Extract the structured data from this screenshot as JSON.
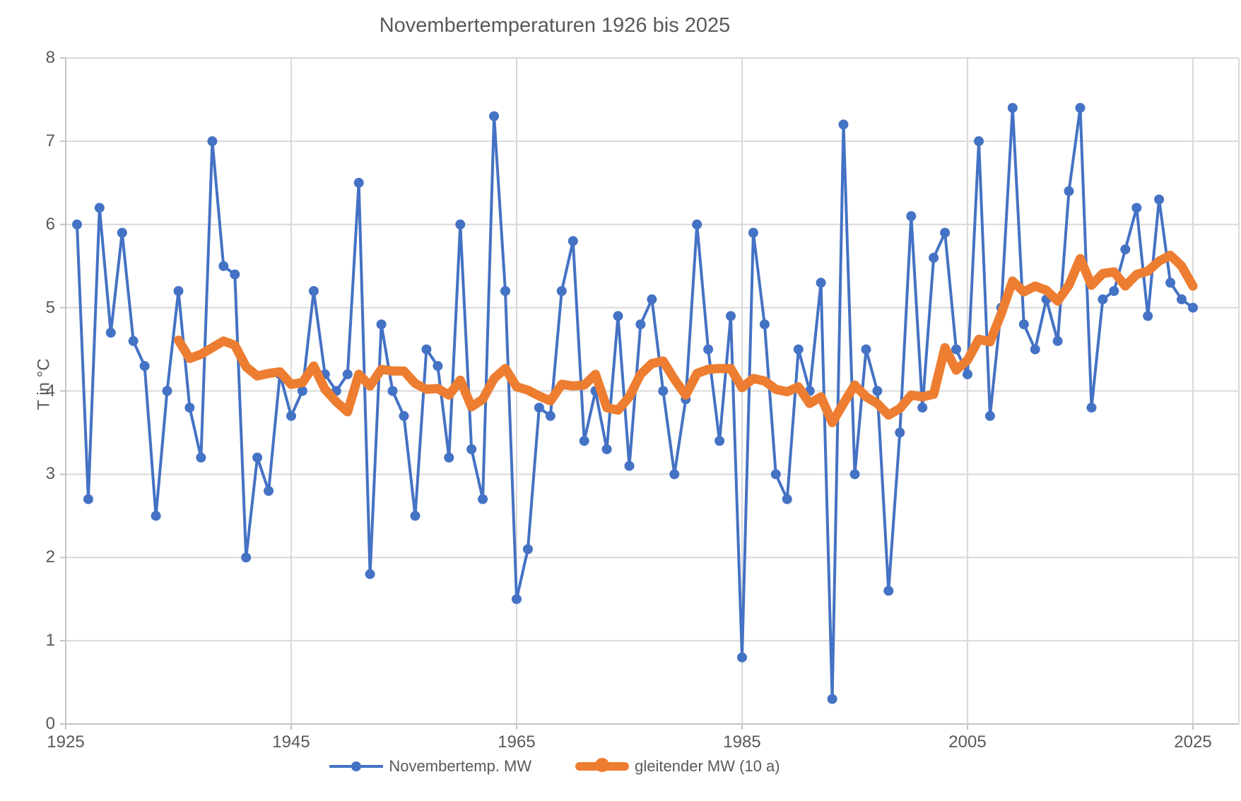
{
  "title": "Novembertemperaturen 1926 bis 2025",
  "y_axis": {
    "label": "T in °C",
    "tick_labels": [
      "0",
      "1",
      "2",
      "3",
      "4",
      "5",
      "6",
      "7",
      "8"
    ],
    "min": 0,
    "max": 8
  },
  "x_axis": {
    "tick_labels": [
      "1925",
      "1945",
      "1965",
      "1985",
      "2005",
      "2025"
    ],
    "tick_years": [
      1925,
      1945,
      1965,
      1985,
      2005,
      2025
    ],
    "min": 1925,
    "max": 2025
  },
  "legend": {
    "items": [
      {
        "label": "Novembertemp. MW",
        "color": "#4472C4",
        "style": "line-with-marker"
      },
      {
        "label": "gleitender MW (10 a)",
        "color": "#ED7D31",
        "style": "thick-line"
      }
    ]
  },
  "colors": {
    "series_blue": "#4472C4",
    "series_orange": "#ED7D31",
    "gridline": "#d9d9d9",
    "axis_line": "#c3c3c3",
    "text": "#595959",
    "background": "#ffffff"
  },
  "chart_data": {
    "type": "line",
    "title": "Novembertemperaturen 1926 bis 2025",
    "xlabel": "",
    "ylabel": "T in °C",
    "ylim": [
      0,
      8
    ],
    "xlim": [
      1925,
      2029
    ],
    "grid": true,
    "legend_position": "bottom",
    "series": [
      {
        "name": "Novembertemp. MW",
        "color": "#4472C4",
        "marker": true,
        "line_width": 4,
        "start_year": 1926,
        "values": [
          6.0,
          2.7,
          6.2,
          4.7,
          5.9,
          4.6,
          4.3,
          2.5,
          4.0,
          5.2,
          3.8,
          3.2,
          7.0,
          5.5,
          5.4,
          2.0,
          3.2,
          2.8,
          4.2,
          3.7,
          4.0,
          5.2,
          4.2,
          4.0,
          4.2,
          6.5,
          1.8,
          4.8,
          4.0,
          3.7,
          2.5,
          4.5,
          4.3,
          3.2,
          6.0,
          3.3,
          2.7,
          7.3,
          5.2,
          1.5,
          2.1,
          3.8,
          3.7,
          5.2,
          5.8,
          3.4,
          4.0,
          3.3,
          4.9,
          3.1,
          4.8,
          5.1,
          4.0,
          3.0,
          3.9,
          6.0,
          4.5,
          3.4,
          4.9,
          0.8,
          5.9,
          4.8,
          3.0,
          2.7,
          4.5,
          4.0,
          5.3,
          0.3,
          7.2,
          3.0,
          4.5,
          4.0,
          1.6,
          3.5,
          6.1,
          3.8,
          5.6,
          5.9,
          4.5,
          4.2,
          7.0,
          3.7,
          5.0,
          7.4,
          4.8,
          4.5,
          5.1,
          4.6,
          6.4,
          7.4,
          3.8,
          5.1,
          5.2,
          5.7,
          6.2,
          4.9,
          6.3,
          5.3,
          5.1,
          5.0
        ]
      },
      {
        "name": "gleitender MW (10 a)",
        "color": "#ED7D31",
        "marker": false,
        "line_width": 13,
        "start_year": 1935,
        "values": [
          4.61,
          4.39,
          4.44,
          4.52,
          4.6,
          4.55,
          4.29,
          4.18,
          4.21,
          4.23,
          4.08,
          4.1,
          4.3,
          4.02,
          3.87,
          3.75,
          4.2,
          4.06,
          4.26,
          4.24,
          4.24,
          4.09,
          4.02,
          4.03,
          3.95,
          4.13,
          3.81,
          3.9,
          4.15,
          4.27,
          4.05,
          4.01,
          3.94,
          3.88,
          4.08,
          4.06,
          4.07,
          4.2,
          3.8,
          3.77,
          3.93,
          4.2,
          4.33,
          4.36,
          4.14,
          3.95,
          4.21,
          4.26,
          4.27,
          4.27,
          4.04,
          4.15,
          4.12,
          4.02,
          3.99,
          4.05,
          3.85,
          3.93,
          3.62,
          3.85,
          4.07,
          3.93,
          3.85,
          3.71,
          3.79,
          3.95,
          3.93,
          3.96,
          4.52,
          4.25,
          4.37,
          4.62,
          4.59,
          4.93,
          5.32,
          5.19,
          5.26,
          5.21,
          5.08,
          5.27,
          5.59,
          5.27,
          5.41,
          5.43,
          5.26,
          5.4,
          5.44,
          5.56,
          5.63,
          5.5,
          5.26
        ]
      }
    ]
  }
}
